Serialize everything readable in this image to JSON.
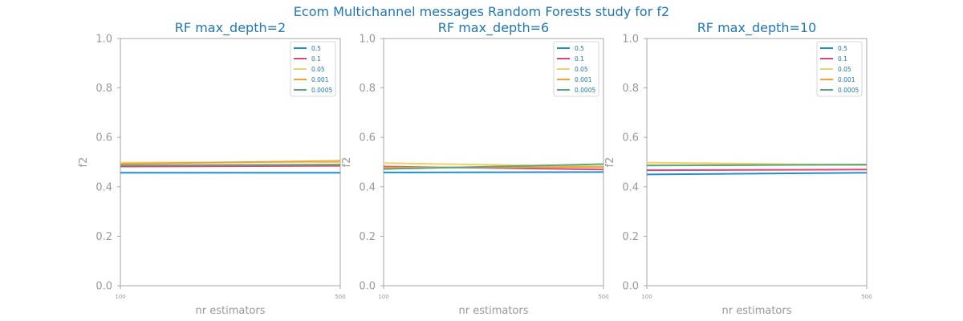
{
  "suptitle": "Ecom Multichannel messages Random Forests study for f2",
  "chart_data": [
    {
      "type": "line",
      "title": "RF max_depth=2",
      "xlabel": "nr estimators",
      "ylabel": "f2",
      "ylim": [
        0,
        1
      ],
      "yticks": [
        "0.0",
        "0.2",
        "0.4",
        "0.6",
        "0.8",
        "1.0"
      ],
      "x": [
        100,
        500
      ],
      "xticks": [
        "100",
        "500"
      ],
      "grid": false,
      "legend_position": "top-right",
      "series": [
        {
          "name": "0.5",
          "color": "#1f8fd1",
          "values": [
            0.457,
            0.457
          ]
        },
        {
          "name": "0.1",
          "color": "#e0447a",
          "values": [
            0.482,
            0.485
          ]
        },
        {
          "name": "0.05",
          "color": "#f2d16b",
          "values": [
            0.498,
            0.5
          ]
        },
        {
          "name": "0.001",
          "color": "#f0a23a",
          "values": [
            0.493,
            0.505
          ]
        },
        {
          "name": "0.0005",
          "color": "#5aaa7a",
          "values": [
            0.487,
            0.49
          ]
        }
      ]
    },
    {
      "type": "line",
      "title": "RF max_depth=6",
      "xlabel": "nr estimators",
      "ylabel": "f2",
      "ylim": [
        0,
        1
      ],
      "yticks": [
        "0.0",
        "0.2",
        "0.4",
        "0.6",
        "0.8",
        "1.0"
      ],
      "x": [
        100,
        500
      ],
      "xticks": [
        "100",
        "500"
      ],
      "grid": false,
      "legend_position": "top-right",
      "series": [
        {
          "name": "0.5",
          "color": "#1f8fd1",
          "values": [
            0.458,
            0.46
          ]
        },
        {
          "name": "0.1",
          "color": "#e0447a",
          "values": [
            0.482,
            0.47
          ]
        },
        {
          "name": "0.05",
          "color": "#f2d16b",
          "values": [
            0.496,
            0.482
          ]
        },
        {
          "name": "0.001",
          "color": "#f0a23a",
          "values": [
            0.478,
            0.48
          ]
        },
        {
          "name": "0.0005",
          "color": "#5aaa7a",
          "values": [
            0.472,
            0.492
          ]
        }
      ]
    },
    {
      "type": "line",
      "title": "RF max_depth=10",
      "xlabel": "nr estimators",
      "ylabel": "f2",
      "ylim": [
        0,
        1
      ],
      "yticks": [
        "0.0",
        "0.2",
        "0.4",
        "0.6",
        "0.8",
        "1.0"
      ],
      "x": [
        100,
        500
      ],
      "xticks": [
        "100",
        "500"
      ],
      "grid": false,
      "legend_position": "top-right",
      "series": [
        {
          "name": "0.5",
          "color": "#1f8fd1",
          "values": [
            0.45,
            0.457
          ]
        },
        {
          "name": "0.1",
          "color": "#e0447a",
          "values": [
            0.467,
            0.47
          ]
        },
        {
          "name": "0.05",
          "color": "#f2d16b",
          "values": [
            0.498,
            0.488
          ]
        },
        {
          "name": "0.001",
          "color": "#f0a23a",
          "values": [
            0.487,
            0.49
          ]
        },
        {
          "name": "0.0005",
          "color": "#5aaa7a",
          "values": [
            0.486,
            0.49
          ]
        }
      ]
    }
  ]
}
